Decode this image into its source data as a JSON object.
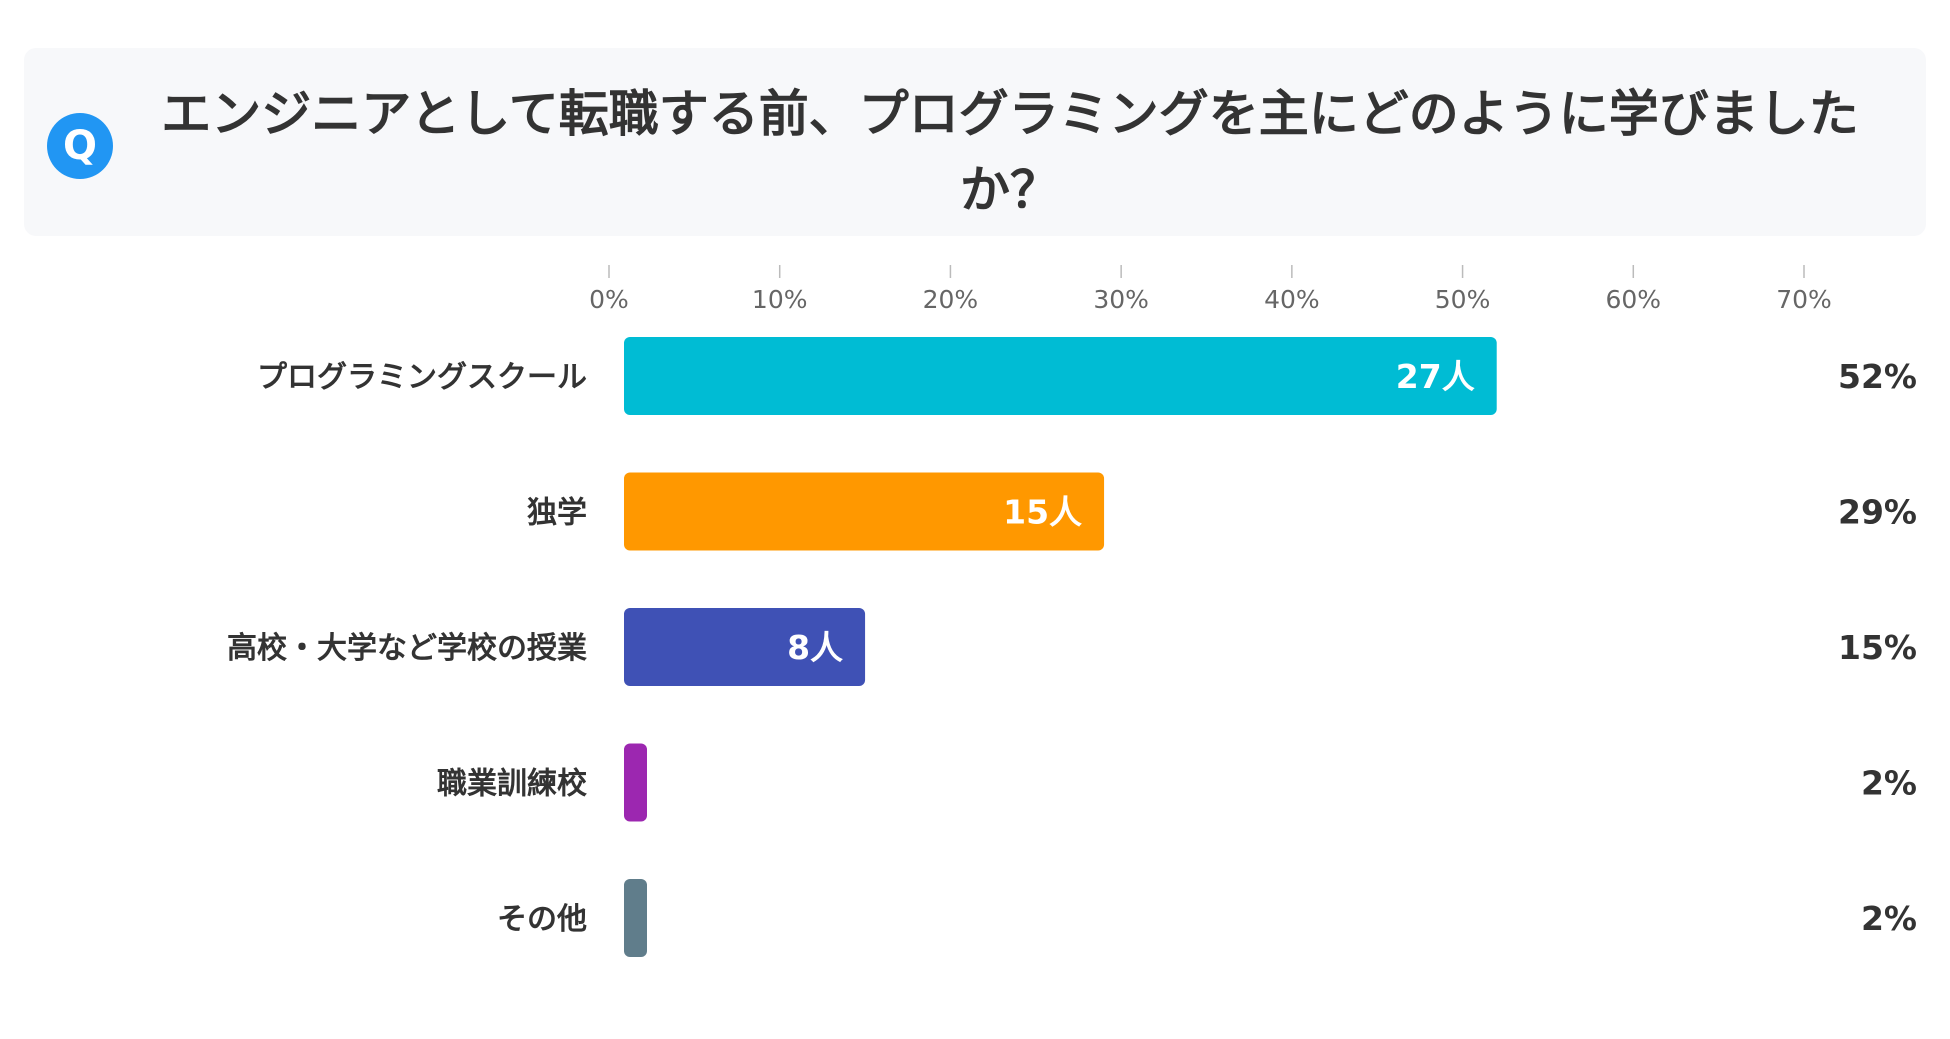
{
  "question": {
    "badge": "Q",
    "text": "エンジニアとして転職する前、プログラミングを主にどのように学びましたか？"
  },
  "chart_data": {
    "type": "bar",
    "orientation": "horizontal",
    "xlim": [
      0,
      70
    ],
    "ticks": [
      0,
      10,
      20,
      30,
      40,
      50,
      60,
      70
    ],
    "tick_labels": [
      "0%",
      "10%",
      "20%",
      "30%",
      "40%",
      "50%",
      "60%",
      "70%"
    ],
    "grid": false,
    "categories": [
      "プログラミングスクール",
      "独学",
      "高校・大学など学校の授業",
      "職業訓練校",
      "その他"
    ],
    "values": [
      52,
      29,
      15,
      2,
      2
    ],
    "percent_labels": [
      "52%",
      "29%",
      "15%",
      "2%",
      "2%"
    ],
    "count_labels": [
      "27人",
      "15人",
      "8人",
      "",
      ""
    ],
    "colors": [
      "#00bcd4",
      "#ff9800",
      "#3f51b5",
      "#9c27b0",
      "#607d8b"
    ]
  }
}
